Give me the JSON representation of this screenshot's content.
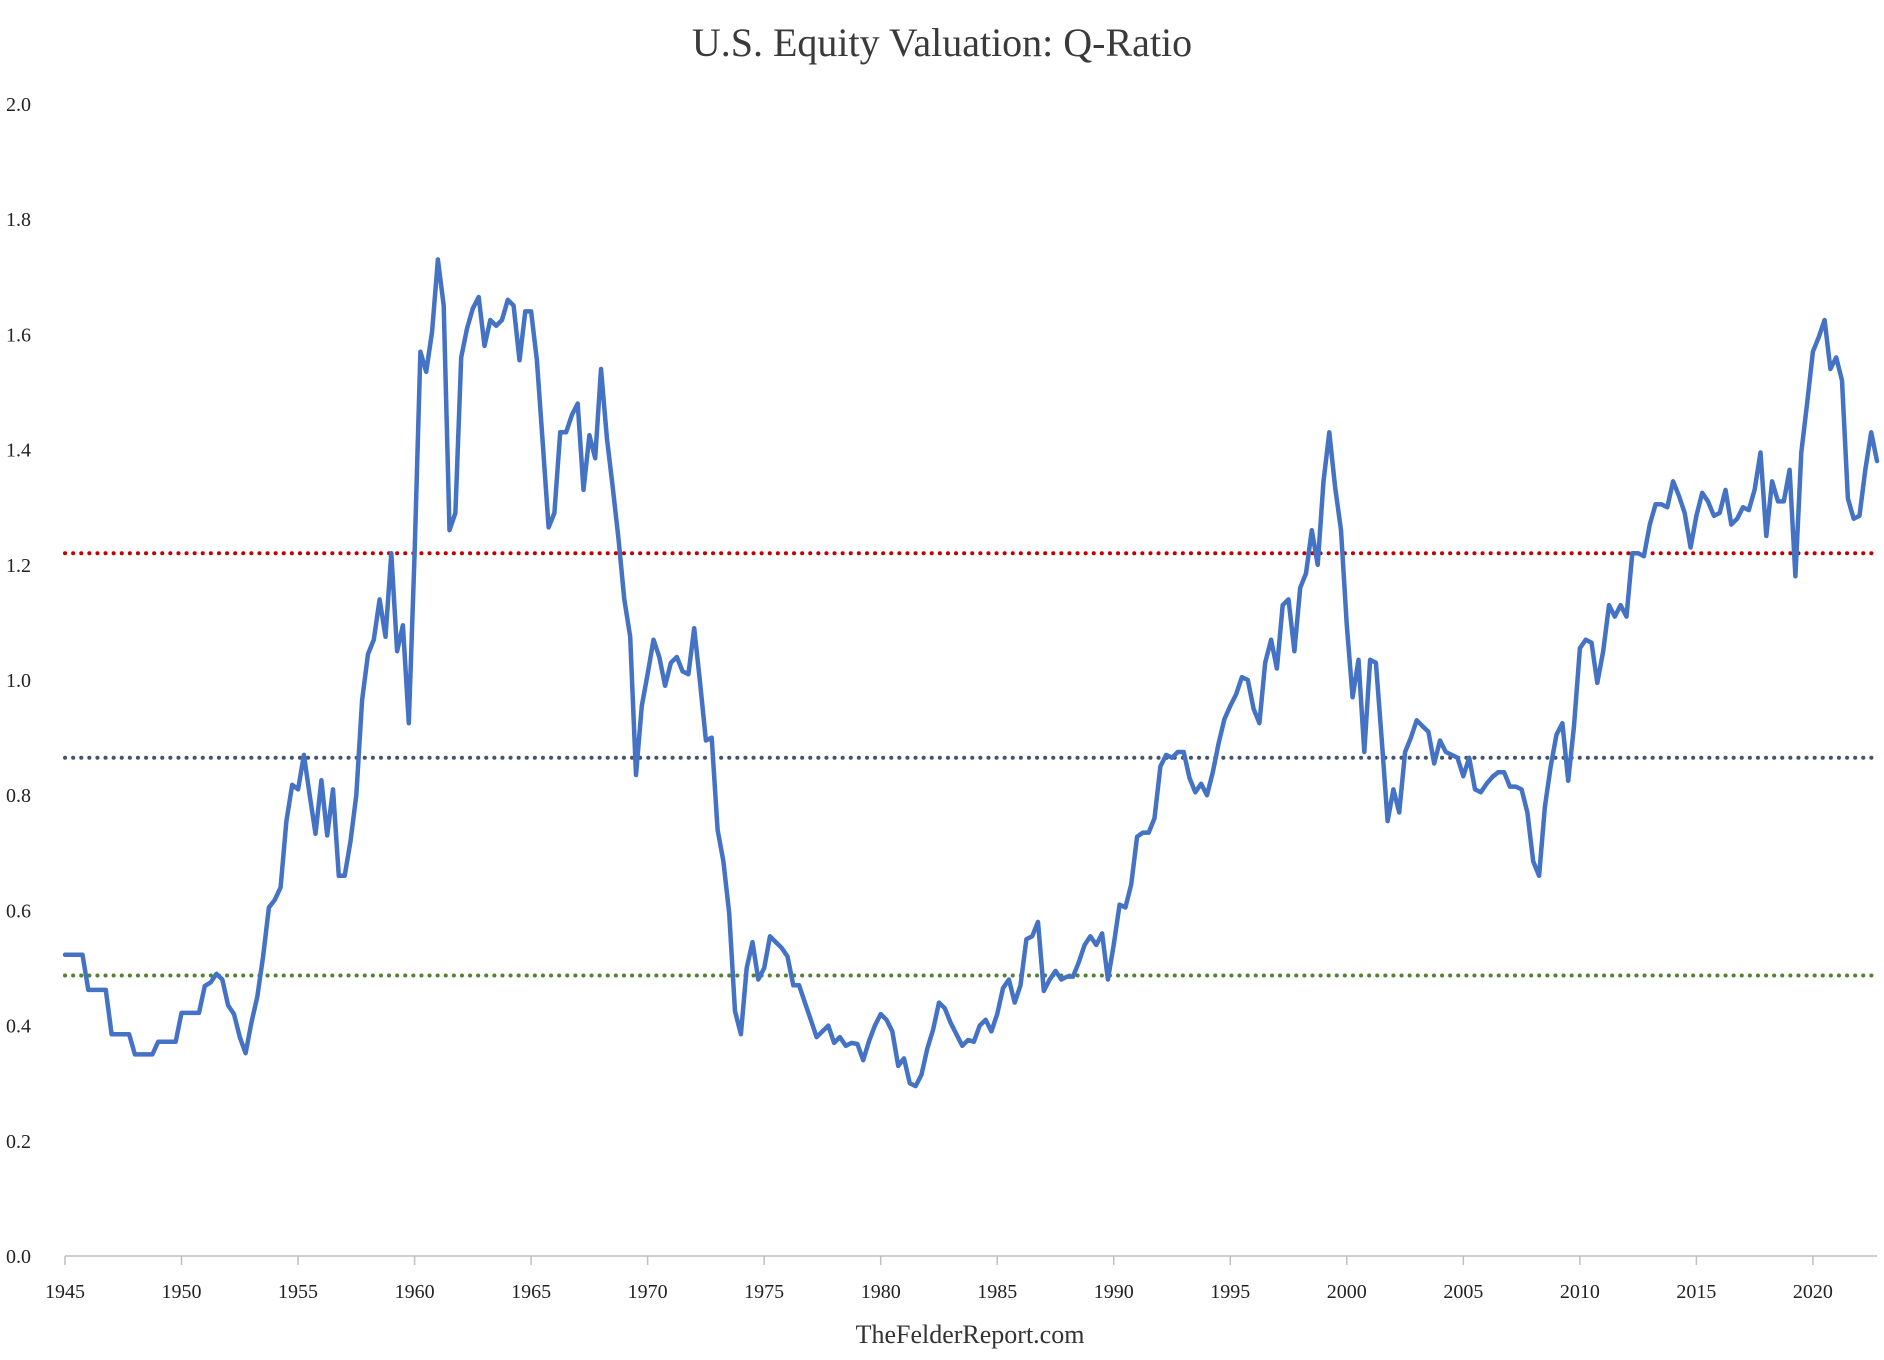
{
  "chart_data": {
    "type": "line",
    "title": "U.S. Equity Valuation: Q-Ratio",
    "xlabel": "TheFelderReport.com",
    "ylabel": "",
    "xlim": [
      1945,
      2022.75
    ],
    "ylim": [
      0,
      2.0
    ],
    "y_ticks": [
      0.0,
      0.2,
      0.4,
      0.6,
      0.8,
      1.0,
      1.2,
      1.4,
      1.6,
      1.8,
      2.0
    ],
    "y_tick_labels": [
      "0.0",
      "0.2",
      "0.4",
      "0.6",
      "0.8",
      "1.0",
      "1.2",
      "1.4",
      "1.6",
      "1.8",
      "2.0"
    ],
    "x_ticks": [
      1945,
      1950,
      1955,
      1960,
      1965,
      1970,
      1975,
      1980,
      1985,
      1990,
      1995,
      2000,
      2005,
      2010,
      2015,
      2020
    ],
    "x_tick_labels": [
      "1945",
      "1950",
      "1955",
      "1960",
      "1965",
      "1970",
      "1975",
      "1980",
      "1985",
      "1990",
      "1995",
      "2000",
      "2005",
      "2010",
      "2015",
      "2020"
    ],
    "grid": false,
    "legend": "none",
    "reference_lines": [
      {
        "value": 1.22,
        "color": "#c00000",
        "style": "dotted"
      },
      {
        "value": 0.865,
        "color": "#44546a",
        "style": "dotted"
      },
      {
        "value": 0.487,
        "color": "#548235",
        "style": "dotted"
      }
    ],
    "series": [
      {
        "color": "#4472c4",
        "x": [
          1945,
          1945.75,
          1946,
          1946.75,
          1947,
          1947.75,
          1948,
          1948.75,
          1949,
          1949.75,
          1950,
          1950.75,
          1951,
          1951.25,
          1951.5,
          1951.75,
          1952,
          1952.25,
          1952.5,
          1952.75,
          1953,
          1953.25,
          1953.5,
          1953.75,
          1954,
          1954.25,
          1954.5,
          1954.75,
          1955,
          1955.25,
          1955.5,
          1955.75,
          1956,
          1956.25,
          1956.5,
          1956.75,
          1957,
          1957.25,
          1957.5,
          1957.75,
          1958,
          1958.25,
          1958.5,
          1958.75,
          1959,
          1959.25,
          1959.5,
          1959.75,
          1960,
          1960.25,
          1960.5,
          1960.75,
          1961,
          1961.25,
          1961.5,
          1961.75,
          1962,
          1962.25,
          1962.5,
          1962.75,
          1963,
          1963.25,
          1963.5,
          1963.75,
          1964,
          1964.25,
          1964.5,
          1964.75,
          1965,
          1965.25,
          1965.5,
          1965.75,
          1966,
          1966.25,
          1966.5,
          1966.75,
          1967,
          1967.25,
          1967.5,
          1967.75,
          1968,
          1968.25,
          1968.5,
          1968.75,
          1969,
          1969.25,
          1969.5,
          1969.75,
          1970,
          1970.25,
          1970.5,
          1970.75,
          1971,
          1971.25,
          1971.5,
          1971.75,
          1972,
          1972.25,
          1972.5,
          1972.75,
          1973,
          1973.25,
          1973.5,
          1973.75,
          1974,
          1974.25,
          1974.5,
          1974.75,
          1975,
          1975.25,
          1975.5,
          1975.75,
          1976,
          1976.25,
          1976.5,
          1976.75,
          1977,
          1977.25,
          1977.5,
          1977.75,
          1978,
          1978.25,
          1978.5,
          1978.75,
          1979,
          1979.25,
          1979.5,
          1979.75,
          1980,
          1980.25,
          1980.5,
          1980.75,
          1981,
          1981.25,
          1981.5,
          1981.75,
          1982,
          1982.25,
          1982.5,
          1982.75,
          1983,
          1983.25,
          1983.5,
          1983.75,
          1984,
          1984.25,
          1984.5,
          1984.75,
          1985,
          1985.25,
          1985.5,
          1985.75,
          1986,
          1986.25,
          1986.5,
          1986.75,
          1987,
          1987.25,
          1987.5,
          1987.75,
          1988,
          1988.25,
          1988.5,
          1988.75,
          1989,
          1989.25,
          1989.5,
          1989.75,
          1990,
          1990.25,
          1990.5,
          1990.75,
          1991,
          1991.25,
          1991.5,
          1991.75,
          1992,
          1992.25,
          1992.5,
          1992.75,
          1993,
          1993.25,
          1993.5,
          1993.75,
          1994,
          1994.25,
          1994.5,
          1994.75,
          1995,
          1995.25,
          1995.5,
          1995.75,
          1996,
          1996.25,
          1996.5,
          1996.75,
          1997,
          1997.25,
          1997.5,
          1997.75,
          1998,
          1998.25,
          1998.5,
          1998.75,
          1999,
          1999.25,
          1999.5,
          1999.75,
          2000,
          2000.25,
          2000.5,
          2000.75,
          2001,
          2001.25,
          2001.5,
          2001.75,
          2002,
          2002.25,
          2002.5,
          2002.75,
          2003,
          2003.25,
          2003.5,
          2003.75,
          2004,
          2004.25,
          2004.5,
          2004.75,
          2005,
          2005.25,
          2005.5,
          2005.75,
          2006,
          2006.25,
          2006.5,
          2006.75,
          2007,
          2007.25,
          2007.5,
          2007.75,
          2008,
          2008.25,
          2008.5,
          2008.75,
          2009,
          2009.25,
          2009.5,
          2009.75,
          2010,
          2010.25,
          2010.5,
          2010.75,
          2011,
          2011.25,
          2011.5,
          2011.75,
          2012,
          2012.25,
          2012.5,
          2012.75,
          2013,
          2013.25,
          2013.5,
          2013.75,
          2014,
          2014.25,
          2014.5,
          2014.75,
          2015,
          2015.25,
          2015.5,
          2015.75,
          2016,
          2016.25,
          2016.5,
          2016.75,
          2017,
          2017.25,
          2017.5,
          2017.75,
          2018,
          2018.25,
          2018.5,
          2018.75,
          2019,
          2019.25,
          2019.5,
          2019.75,
          2020,
          2020.25,
          2020.5,
          2020.75,
          2021,
          2021.25,
          2021.5,
          2021.75,
          2022,
          2022.25,
          2022.5,
          2022.75
        ],
        "y": [
          0.523,
          0.523,
          0.462,
          0.462,
          0.385,
          0.385,
          0.35,
          0.35,
          0.372,
          0.372,
          0.422,
          0.422,
          0.469,
          0.475,
          0.49,
          0.48,
          0.435,
          0.42,
          0.38,
          0.352,
          0.405,
          0.45,
          0.52,
          0.605,
          0.618,
          0.64,
          0.755,
          0.818,
          0.81,
          0.87,
          0.8,
          0.733,
          0.826,
          0.73,
          0.81,
          0.66,
          0.66,
          0.72,
          0.8,
          0.965,
          1.045,
          1.07,
          1.14,
          1.075,
          1.22,
          1.05,
          1.095,
          0.925,
          1.22,
          1.57,
          1.535,
          1.605,
          1.73,
          1.65,
          1.26,
          1.29,
          1.56,
          1.61,
          1.645,
          1.665,
          1.58,
          1.625,
          1.615,
          1.625,
          1.66,
          1.65,
          1.555,
          1.64,
          1.64,
          1.555,
          1.41,
          1.265,
          1.29,
          1.43,
          1.43,
          1.46,
          1.48,
          1.33,
          1.425,
          1.385,
          1.54,
          1.42,
          1.335,
          1.245,
          1.14,
          1.075,
          0.835,
          0.955,
          1.01,
          1.07,
          1.04,
          0.99,
          1.03,
          1.04,
          1.015,
          1.01,
          1.09,
          0.995,
          0.895,
          0.9,
          0.74,
          0.685,
          0.595,
          0.425,
          0.385,
          0.5,
          0.545,
          0.48,
          0.5,
          0.555,
          0.545,
          0.535,
          0.52,
          0.47,
          0.47,
          0.44,
          0.41,
          0.38,
          0.39,
          0.4,
          0.37,
          0.38,
          0.365,
          0.37,
          0.368,
          0.34,
          0.373,
          0.4,
          0.42,
          0.41,
          0.39,
          0.33,
          0.343,
          0.3,
          0.295,
          0.315,
          0.36,
          0.393,
          0.44,
          0.43,
          0.405,
          0.385,
          0.365,
          0.375,
          0.372,
          0.4,
          0.41,
          0.39,
          0.42,
          0.465,
          0.48,
          0.44,
          0.47,
          0.55,
          0.555,
          0.58,
          0.46,
          0.48,
          0.495,
          0.48,
          0.485,
          0.485,
          0.51,
          0.54,
          0.555,
          0.54,
          0.56,
          0.48,
          0.54,
          0.61,
          0.605,
          0.645,
          0.728,
          0.735,
          0.735,
          0.76,
          0.85,
          0.87,
          0.865,
          0.875,
          0.875,
          0.83,
          0.805,
          0.82,
          0.8,
          0.84,
          0.89,
          0.932,
          0.955,
          0.975,
          1.005,
          1.0,
          0.95,
          0.925,
          1.03,
          1.07,
          1.02,
          1.13,
          1.14,
          1.05,
          1.16,
          1.185,
          1.26,
          1.2,
          1.345,
          1.43,
          1.335,
          1.26,
          1.095,
          0.97,
          1.035,
          0.875,
          1.035,
          1.03,
          0.895,
          0.755,
          0.81,
          0.77,
          0.875,
          0.9,
          0.93,
          0.92,
          0.91,
          0.855,
          0.895,
          0.875,
          0.87,
          0.865,
          0.833,
          0.865,
          0.81,
          0.805,
          0.82,
          0.832,
          0.84,
          0.84,
          0.815,
          0.815,
          0.81,
          0.77,
          0.685,
          0.66,
          0.78,
          0.85,
          0.905,
          0.925,
          0.825,
          0.92,
          1.055,
          1.07,
          1.065,
          0.995,
          1.05,
          1.13,
          1.11,
          1.13,
          1.11,
          1.22,
          1.22,
          1.215,
          1.27,
          1.305,
          1.305,
          1.3,
          1.345,
          1.32,
          1.29,
          1.23,
          1.285,
          1.325,
          1.31,
          1.285,
          1.29,
          1.33,
          1.27,
          1.28,
          1.3,
          1.295,
          1.33,
          1.395,
          1.25,
          1.345,
          1.31,
          1.31,
          1.365,
          1.18,
          1.395,
          1.48,
          1.57,
          1.595,
          1.625,
          1.54,
          1.56,
          1.52,
          1.315,
          1.28,
          1.285,
          1.365,
          1.43,
          1.38
        ]
      }
    ]
  }
}
